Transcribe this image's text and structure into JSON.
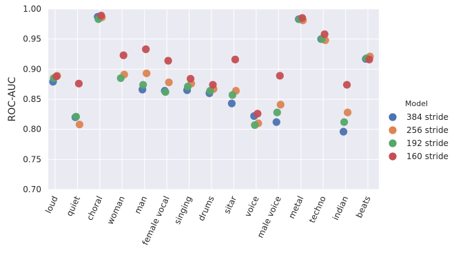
{
  "chart_data": {
    "type": "scatter",
    "title": "",
    "xlabel": "",
    "ylabel": "ROC-AUC",
    "ylim": [
      0.7,
      1.0
    ],
    "yticks": [
      "0.70",
      "0.75",
      "0.80",
      "0.85",
      "0.90",
      "0.95",
      "1.00"
    ],
    "grid": true,
    "legend_title": "Model",
    "legend_position": "right",
    "categories": [
      "loud",
      "quiet",
      "choral",
      "woman",
      "man",
      "female vocal",
      "singing",
      "drums",
      "sitar",
      "voice",
      "male voice",
      "metal",
      "techno",
      "indian",
      "beats"
    ],
    "series": [
      {
        "name": "384 stride",
        "color": "#4c72b0",
        "values": [
          0.879,
          0.82,
          0.987,
          null,
          0.866,
          0.864,
          0.865,
          0.86,
          0.843,
          0.822,
          0.812,
          0.983,
          0.95,
          0.796,
          0.917
        ]
      },
      {
        "name": "256 stride",
        "color": "#dd8452",
        "values": [
          0.889,
          0.808,
          0.986,
          0.891,
          0.893,
          0.878,
          0.876,
          0.867,
          0.864,
          0.81,
          0.841,
          0.981,
          0.948,
          0.828,
          0.921
        ]
      },
      {
        "name": "192 stride",
        "color": "#55a868",
        "values": [
          0.885,
          0.821,
          0.983,
          0.885,
          0.874,
          0.862,
          0.871,
          0.864,
          0.857,
          0.807,
          0.828,
          0.983,
          0.95,
          0.812,
          0.918
        ]
      },
      {
        "name": "160 stride",
        "color": "#c44e52",
        "values": [
          0.888,
          0.876,
          0.989,
          0.923,
          0.933,
          0.914,
          0.884,
          0.874,
          0.916,
          0.826,
          0.889,
          0.985,
          0.958,
          0.874,
          0.916
        ]
      }
    ]
  }
}
